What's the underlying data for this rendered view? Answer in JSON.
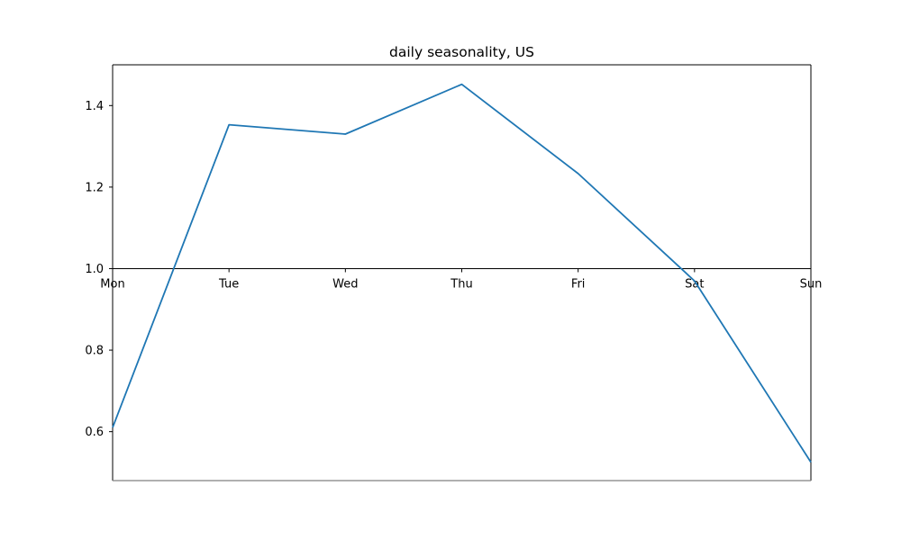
{
  "chart_data": {
    "type": "line",
    "title": "daily seasonality, US",
    "xlabel": "",
    "ylabel": "",
    "categories": [
      "Mon",
      "Tue",
      "Wed",
      "Thu",
      "Fri",
      "Sat",
      "Sun"
    ],
    "series": [
      {
        "values": [
          0.61,
          1.353,
          1.33,
          1.452,
          1.233,
          0.97,
          0.525
        ],
        "color": "#1f77b4"
      }
    ],
    "ylim": [
      0.48,
      1.5
    ],
    "yticks": [
      0.6,
      0.8,
      1.0,
      1.2,
      1.4
    ],
    "ytick_labels": [
      "0.6",
      "0.8",
      "1.0",
      "1.2",
      "1.4"
    ],
    "baseline": 1.0,
    "grid": false,
    "legend": "none"
  }
}
